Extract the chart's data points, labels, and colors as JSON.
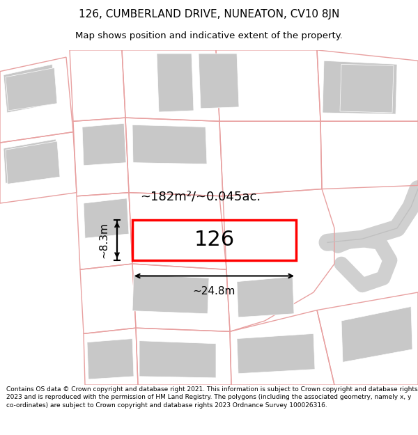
{
  "title": "126, CUMBERLAND DRIVE, NUNEATON, CV10 8JN",
  "subtitle": "Map shows position and indicative extent of the property.",
  "area_label": "~182m²/~0.045ac.",
  "width_label": "~24.8m",
  "height_label": "~8.3m",
  "number_label": "126",
  "copyright_text": "Contains OS data © Crown copyright and database right 2021. This information is subject to Crown copyright and database rights 2023 and is reproduced with the permission of HM Land Registry. The polygons (including the associated geometry, namely x, y co-ordinates) are subject to Crown copyright and database rights 2023 Ordnance Survey 100026316.",
  "bg_color": "#ffffff",
  "map_bg_color": "#ffffff",
  "property_outline_color": "#ff0000",
  "surrounding_color": "#e8a0a0",
  "road_color": "#c8c8c8",
  "building_color": "#c8c8c8",
  "building_edge_color": "#b0b0b0",
  "title_fontsize": 11,
  "subtitle_fontsize": 10
}
